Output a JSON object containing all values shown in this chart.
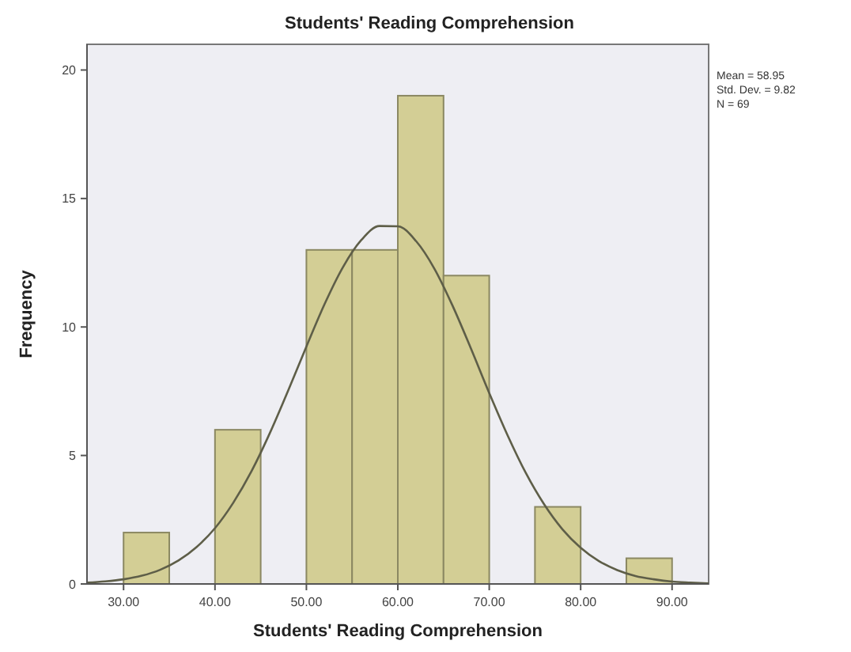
{
  "chart_data": {
    "type": "histogram",
    "title": "Students' Reading Comprehension",
    "xlabel": "Students' Reading Comprehension",
    "ylabel": "Frequency",
    "annotations": [
      "Mean = 58.95",
      "Std. Dev. = 9.82",
      "N = 69"
    ],
    "bins": [
      30,
      35,
      40,
      45,
      50,
      55,
      60,
      65,
      70,
      75,
      80,
      85,
      90
    ],
    "series": [
      {
        "color": "#d3ce95",
        "values": [
          2,
          0,
          6,
          0,
          13,
          13,
          19,
          12,
          0,
          3,
          0,
          1
        ]
      },
      {
        "type": "line",
        "color": "#5e5e48",
        "x": [
          26,
          28,
          30,
          32,
          34,
          36,
          38,
          40,
          42,
          44,
          46,
          48,
          50,
          52,
          54,
          56,
          58,
          60,
          62,
          64,
          66,
          68,
          70,
          72,
          74,
          76,
          78,
          80,
          82,
          84,
          86,
          88,
          90,
          92,
          94
        ],
        "values": [
          0.05,
          0.1,
          0.18,
          0.32,
          0.55,
          0.91,
          1.44,
          2.17,
          3.16,
          4.39,
          5.87,
          7.52,
          9.24,
          10.9,
          12.33,
          13.38,
          13.93,
          13.92,
          13.34,
          12.27,
          10.82,
          9.16,
          7.43,
          5.79,
          4.32,
          3.1,
          2.13,
          1.41,
          0.89,
          0.54,
          0.31,
          0.18,
          0.09,
          0.05,
          0.02
        ]
      }
    ],
    "xlim": [
      26,
      94
    ],
    "ylim": [
      0,
      21
    ],
    "xticks": [
      {
        "value": 30,
        "label": "30.00"
      },
      {
        "value": 40,
        "label": "40.00"
      },
      {
        "value": 50,
        "label": "50.00"
      },
      {
        "value": 60,
        "label": "60.00"
      },
      {
        "value": 70,
        "label": "70.00"
      },
      {
        "value": 80,
        "label": "80.00"
      },
      {
        "value": 90,
        "label": "90.00"
      }
    ],
    "yticks": [
      0,
      5,
      10,
      15,
      20
    ],
    "grid": false,
    "marker": "none",
    "line_style": "solid"
  }
}
